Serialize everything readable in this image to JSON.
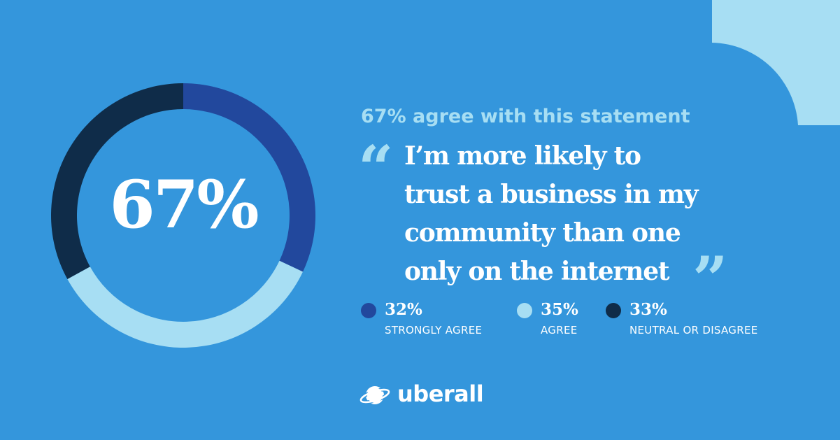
{
  "colors": {
    "background": "#3496dc",
    "strongly_agree": "#22489d",
    "agree": "#a7def3",
    "neutral_or_disagree": "#0f2c49",
    "accent_text": "#a7def3",
    "text": "#ffffff"
  },
  "chart_data": {
    "type": "pie",
    "donut": true,
    "center_label": "67%",
    "slices": [
      {
        "label": "STRONGLY AGREE",
        "value": 32,
        "display": "32%",
        "color": "#22489d"
      },
      {
        "label": "AGREE",
        "value": 35,
        "display": "35%",
        "color": "#a7def3"
      },
      {
        "label": "NEUTRAL OR DISAGREE",
        "value": 33,
        "display": "33%",
        "color": "#0f2c49"
      }
    ],
    "legend_position": "bottom"
  },
  "headline": "67% agree with this statement",
  "quote": {
    "open_mark": "“",
    "close_mark": "”",
    "lines": [
      "I’m more likely to",
      "trust a business in my",
      "community than one",
      "only on the internet"
    ]
  },
  "logo": {
    "text": "uberall",
    "icon": "planet-logo-icon"
  }
}
